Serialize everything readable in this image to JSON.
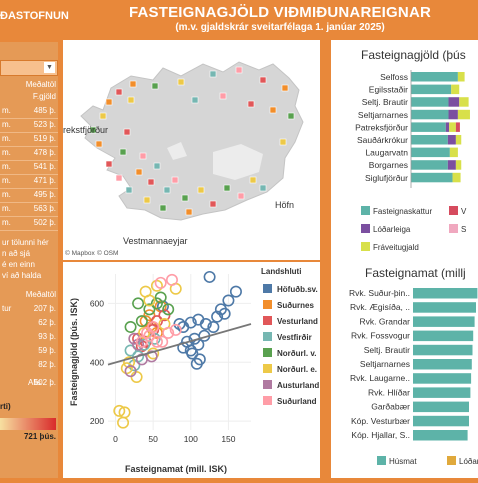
{
  "header": {
    "title": "FASTEIGNAGJÖLD VIÐMIÐUNAREIGNAR",
    "subtitle": "(m.v. gjaldskrár sveitarfélaga 1. janúar 2025)",
    "brand": "ÐASTOFNUN"
  },
  "left_panel": {
    "col_header_1": "Meðaltöl",
    "col_header_2": "F.gjöld",
    "rows": [
      {
        "label": "m.",
        "value": "485 þ."
      },
      {
        "label": "m.",
        "value": "523 þ."
      },
      {
        "label": "m.",
        "value": "519 þ."
      },
      {
        "label": "m.",
        "value": "478 þ."
      },
      {
        "label": "m.",
        "value": "541 þ."
      },
      {
        "label": "m.",
        "value": "471 þ."
      },
      {
        "label": "m.",
        "value": "495 þ."
      },
      {
        "label": "m.",
        "value": "563 þ."
      },
      {
        "label": "m.",
        "value": "502 þ."
      }
    ],
    "note_lines": [
      "ur tölunni hér",
      "n að sjá",
      "é en einn",
      "ví að halda"
    ],
    "col_header_3": "Meðaltöl",
    "rows2": [
      {
        "label": "tur",
        "value": "207 þ."
      },
      {
        "label": "",
        "value": "62 þ."
      },
      {
        "label": "",
        "value": "93 þ."
      },
      {
        "label": "",
        "value": "59 þ."
      },
      {
        "label": "",
        "value": "82 þ."
      }
    ],
    "all_label": "Alls",
    "all_value": "502 þ.",
    "gradient_label": "rti)",
    "gradient_max": "721 þús."
  },
  "map": {
    "labels": {
      "west": "rekstfjörður",
      "east": "Höfn",
      "south": "Vestmannaeyjar"
    },
    "credit_mapbox": "© Mapbox",
    "credit_osm": "© OSM"
  },
  "scatter": {
    "legend_title": "Landshluti",
    "xlabel": "Fasteignamat (mill. ISK)",
    "ylabel": "Fasteignagjöld (þús. ISK)"
  },
  "bar1": {
    "title": "Fasteignagjöld (þús",
    "legend": [
      {
        "name": "Fasteignaskattur",
        "color": "#5db3a8"
      },
      {
        "name": "Lóðarleiga",
        "color": "#7b4fa0"
      },
      {
        "name": "Fráveitugjald",
        "color": "#d8e04a"
      },
      {
        "name": "V",
        "color": "#d64b5e"
      },
      {
        "name": "S",
        "color": "#f0a8bf"
      }
    ]
  },
  "bar2": {
    "title": "Fasteignamat (millj",
    "legend": [
      {
        "name": "Húsmat",
        "color": "#5db3a8"
      },
      {
        "name": "Lóðar",
        "color": "#e0a93c"
      }
    ]
  },
  "chart_data": [
    {
      "type": "bar",
      "title": "Fasteignagjöld (þús",
      "categories": [
        "Selfoss",
        "Egilsstaðir",
        "Seltj. Brautir",
        "Seltjarnarnes",
        "Patreksfjörður",
        "Sauðárkrókur",
        "Laugarvatn",
        "Borgarnes",
        "Siglufjörður"
      ],
      "series": [
        {
          "name": "Fasteignaskattur",
          "values": [
            70,
            60,
            56,
            56,
            52,
            55,
            58,
            55,
            62
          ]
        },
        {
          "name": "Lóðarleiga",
          "values": [
            0,
            0,
            16,
            14,
            5,
            12,
            0,
            12,
            0
          ]
        },
        {
          "name": "Fráveitugjald",
          "values": [
            10,
            12,
            14,
            18,
            10,
            8,
            12,
            8,
            12
          ]
        },
        {
          "name": "V",
          "values": [
            0,
            0,
            0,
            0,
            6,
            0,
            0,
            0,
            0
          ]
        },
        {
          "name": "S",
          "values": [
            0,
            0,
            0,
            0,
            0,
            0,
            0,
            0,
            0
          ]
        }
      ]
    },
    {
      "type": "bar",
      "title": "Fasteignamat (millj",
      "categories": [
        "Rvk. Suður-þin..",
        "Rvk. Ægisíða, ..",
        "Rvk. Grandar",
        "Rvk. Fossvogur",
        "Seltj. Brautir",
        "Seltjarnarnes",
        "Rvk. Laugarne..",
        "Rvk. Hlíðar",
        "Garðabær",
        "Kóp. Vesturbær",
        "Kóp. Hjallar, S.."
      ],
      "series": [
        {
          "name": "Húsmat",
          "values": [
            92,
            90,
            88,
            86,
            85,
            84,
            83,
            82,
            80,
            80,
            78
          ]
        },
        {
          "name": "Lóðar",
          "values": [
            0,
            0,
            0,
            0,
            0,
            0,
            0,
            0,
            0,
            0,
            0
          ]
        }
      ]
    },
    {
      "type": "scatter",
      "xlabel": "Fasteignamat (mill. ISK)",
      "ylabel": "Fasteignagjöld (þús. ISK)",
      "xlim": [
        -10,
        180
      ],
      "ylim": [
        170,
        700
      ],
      "xticks": [
        0,
        50,
        100,
        150
      ],
      "yticks": [
        200,
        400,
        600
      ],
      "trend": [
        [
          -10,
          392
        ],
        [
          180,
          530
        ]
      ],
      "series": [
        {
          "name": "Höfuðb.sv.",
          "color": "#4e79a7",
          "points": [
            [
              63,
              590
            ],
            [
              85,
              530
            ],
            [
              90,
              520
            ],
            [
              100,
              535
            ],
            [
              110,
              545
            ],
            [
              120,
              530
            ],
            [
              130,
              520
            ],
            [
              135,
              555
            ],
            [
              145,
              565
            ],
            [
              125,
              690
            ],
            [
              160,
              640
            ],
            [
              150,
              610
            ],
            [
              140,
              580
            ],
            [
              100,
              440
            ],
            [
              110,
              460
            ],
            [
              118,
              490
            ],
            [
              105,
              480
            ],
            [
              95,
              470
            ],
            [
              102,
              430
            ],
            [
              108,
              395
            ],
            [
              112,
              410
            ],
            [
              90,
              450
            ]
          ]
        },
        {
          "name": "Suðurnes",
          "color": "#f28e2b",
          "points": [
            [
              40,
              540
            ],
            [
              45,
              560
            ],
            [
              55,
              500
            ],
            [
              48,
              520
            ],
            [
              60,
              590
            ]
          ]
        },
        {
          "name": "Vesturland",
          "color": "#e15759",
          "points": [
            [
              30,
              480
            ],
            [
              40,
              470
            ],
            [
              35,
              455
            ],
            [
              50,
              510
            ],
            [
              65,
              560
            ],
            [
              55,
              540
            ]
          ]
        },
        {
          "name": "Vestfirðir",
          "color": "#76b7b2",
          "points": [
            [
              20,
              440
            ],
            [
              30,
              420
            ],
            [
              38,
              460
            ],
            [
              52,
              480
            ],
            [
              25,
              390
            ]
          ]
        },
        {
          "name": "Norðurl. v.",
          "color": "#59a14f",
          "points": [
            [
              20,
              520
            ],
            [
              35,
              540
            ],
            [
              45,
              580
            ],
            [
              55,
              600
            ],
            [
              30,
              600
            ],
            [
              70,
              580
            ],
            [
              60,
              620
            ]
          ]
        },
        {
          "name": "Norðurl. e.",
          "color": "#edc948",
          "points": [
            [
              5,
              235
            ],
            [
              12,
              230
            ],
            [
              10,
              195
            ],
            [
              40,
              640
            ],
            [
              55,
              660
            ],
            [
              80,
              650
            ],
            [
              45,
              610
            ],
            [
              65,
              530
            ],
            [
              38,
              500
            ],
            [
              50,
              430
            ],
            [
              15,
              380
            ],
            [
              28,
              350
            ],
            [
              18,
              400
            ]
          ]
        },
        {
          "name": "Austurland",
          "color": "#b07aa1",
          "points": [
            [
              25,
              480
            ],
            [
              20,
              370
            ],
            [
              35,
              410
            ],
            [
              48,
              420
            ],
            [
              30,
              460
            ]
          ]
        },
        {
          "name": "Suðurland",
          "color": "#ff9da7",
          "points": [
            [
              60,
              670
            ],
            [
              75,
              680
            ],
            [
              35,
              470
            ],
            [
              45,
              490
            ],
            [
              55,
              470
            ],
            [
              70,
              500
            ],
            [
              80,
              510
            ],
            [
              50,
              520
            ],
            [
              42,
              500
            ],
            [
              62,
              470
            ]
          ]
        }
      ]
    }
  ]
}
